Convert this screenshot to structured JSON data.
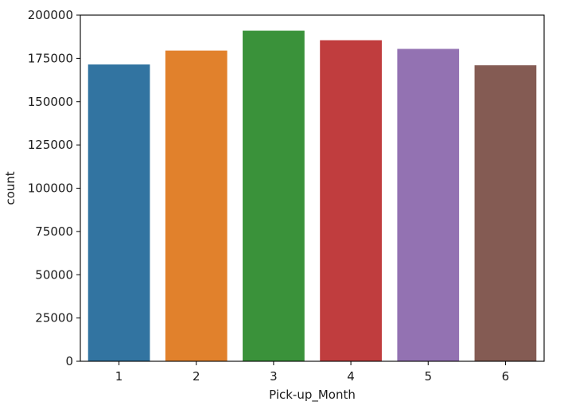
{
  "chart_data": {
    "type": "bar",
    "xlabel": "Pick-up_Month",
    "ylabel": "count",
    "categories": [
      "1",
      "2",
      "3",
      "4",
      "5",
      "6"
    ],
    "values": [
      171500,
      179500,
      191000,
      185500,
      180500,
      171000
    ],
    "ylim": [
      0,
      200000
    ],
    "yticks": [
      "0",
      "25000",
      "50000",
      "75000",
      "100000",
      "125000",
      "150000",
      "175000",
      "200000"
    ],
    "colors": [
      "#3274a1",
      "#e1812c",
      "#3a923a",
      "#c03d3e",
      "#9372b2",
      "#845b53"
    ],
    "grid": false,
    "legend": "none"
  }
}
